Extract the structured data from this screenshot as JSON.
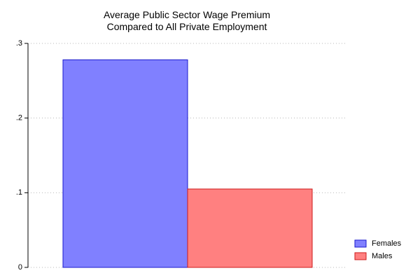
{
  "chart_data": {
    "type": "bar",
    "title_line1": "Average Public Sector Wage Premium",
    "title_line2": "Compared to All Private Employment",
    "xlabel": "",
    "ylabel": "",
    "ylim": [
      0,
      0.3
    ],
    "yticks": [
      {
        "value": 0,
        "label": "0"
      },
      {
        "value": 0.1,
        "label": ".1"
      },
      {
        "value": 0.2,
        "label": ".2"
      },
      {
        "value": 0.3,
        "label": ".3"
      }
    ],
    "grid": true,
    "legend_position": "bottom-right",
    "series": [
      {
        "name": "Females",
        "value": 0.278,
        "color": "#8080ff",
        "stroke": "#1a1acc"
      },
      {
        "name": "Males",
        "value": 0.105,
        "color": "#ff8080",
        "stroke": "#cc1a1a"
      }
    ]
  }
}
